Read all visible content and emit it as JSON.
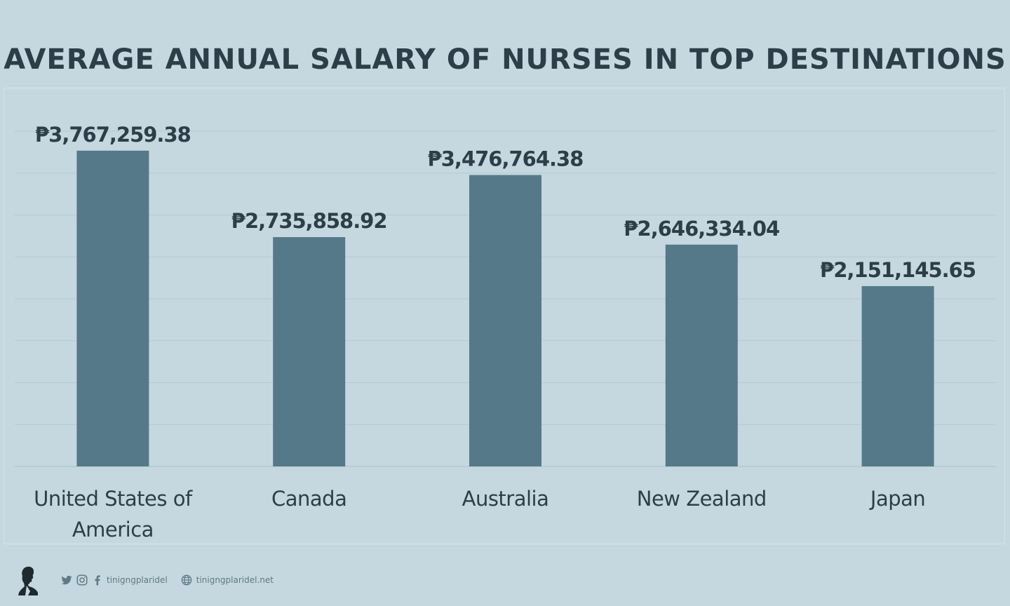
{
  "chart_data": {
    "type": "bar",
    "title": "AVERAGE ANNUAL SALARY OF NURSES IN TOP DESTINATIONS",
    "categories": [
      [
        "United States of",
        "America"
      ],
      [
        "Canada"
      ],
      [
        "Australia"
      ],
      [
        "New Zealand"
      ],
      [
        "Japan"
      ]
    ],
    "values": [
      3767259.38,
      2735858.92,
      3476764.38,
      2646334.04,
      2151145.65
    ],
    "data_labels": [
      "₱3,767,259.38",
      "₱2,735,858.92",
      "₱3,476,764.38",
      "₱2,646,334.04",
      "₱2,151,145.65"
    ],
    "ylim": [
      0,
      4000000
    ],
    "grid": true,
    "bar_color": "#557989",
    "label_color": "#2c3e48"
  },
  "footer": {
    "social_handle": "tinigngplaridel",
    "website": "tinigngplaridel.net",
    "icons": [
      "logo-icon",
      "twitter-icon",
      "instagram-icon",
      "facebook-icon",
      "globe-icon"
    ]
  }
}
